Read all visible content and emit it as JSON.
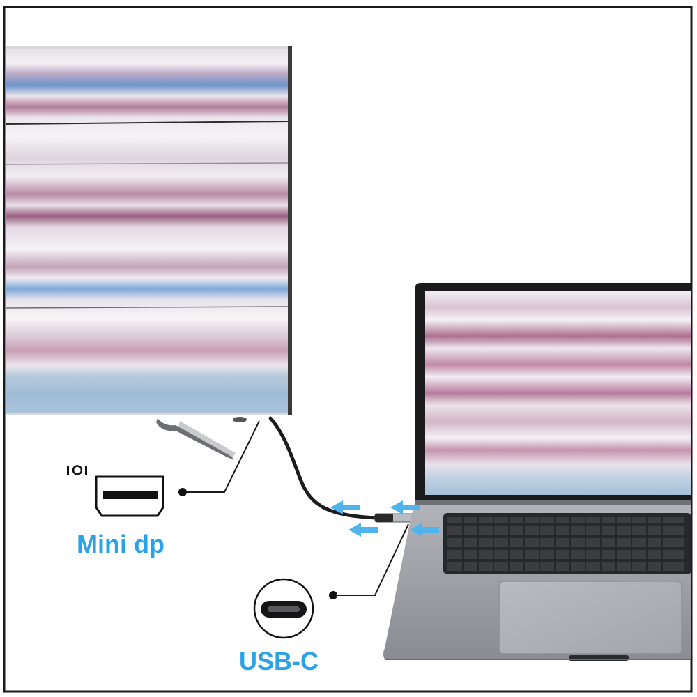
{
  "labels": {
    "mini_dp": "Mini dp",
    "usb_c": "USB-C"
  },
  "icons": {
    "mini_dp_port": "mini-displayport-port-icon",
    "mini_dp_symbol": "displayport-symbol-icon",
    "usb_c_port": "usb-c-port-icon"
  },
  "colors": {
    "label_blue": "#29a3e6",
    "arrow_blue": "#4fb4ec",
    "laptop_body": "#8f9197",
    "cable": "#1c1c1c"
  }
}
